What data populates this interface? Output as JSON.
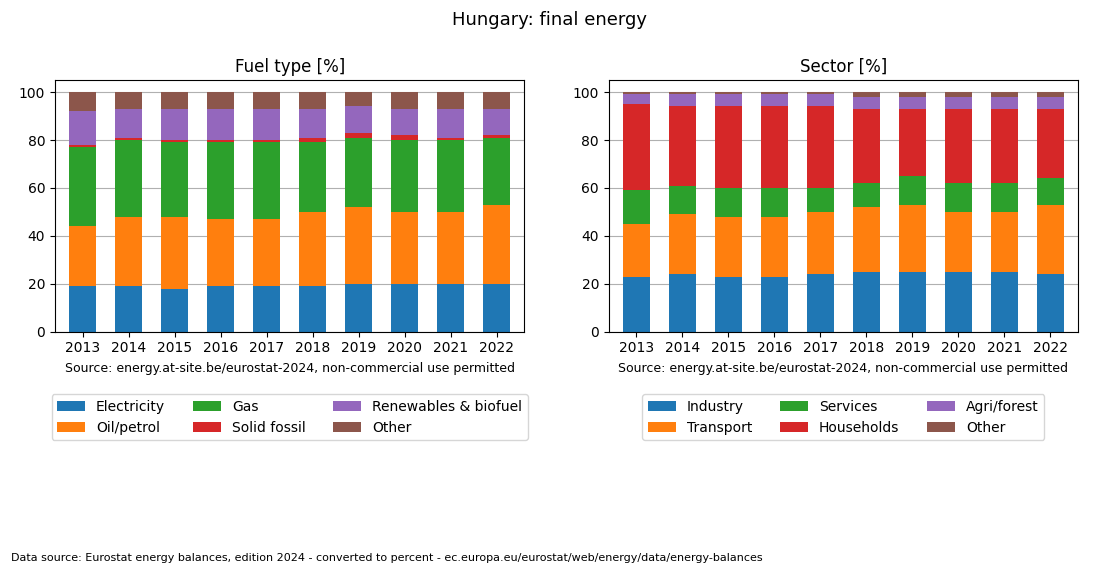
{
  "title": "Hungary: final energy",
  "annotations": [
    "Data source: Eurostat energy balances, edition 2024 - converted to percent - ec.europa.eu/eurostat/web/energy/data/energy-balances"
  ],
  "chart_data": [
    {
      "type": "bar",
      "title": "Fuel type [%]",
      "stacked": true,
      "categories": [
        "2013",
        "2014",
        "2015",
        "2016",
        "2017",
        "2018",
        "2019",
        "2020",
        "2021",
        "2022"
      ],
      "ylim": [
        0,
        105
      ],
      "yticks": [
        0,
        20,
        40,
        60,
        80,
        100
      ],
      "grid": true,
      "legend": "upper center",
      "annotations": [
        "Source: energy.at-site.be/eurostat-2024, non-commercial use permitted"
      ],
      "series": [
        {
          "name": "Electricity",
          "color": "#1f77b4",
          "values": [
            19,
            19,
            18,
            19,
            19,
            19,
            20,
            20,
            20,
            20
          ]
        },
        {
          "name": "Oil/petrol",
          "color": "#ff7f0e",
          "values": [
            25,
            29,
            30,
            28,
            28,
            31,
            32,
            30,
            30,
            33
          ]
        },
        {
          "name": "Gas",
          "color": "#2ca02c",
          "values": [
            33,
            32,
            31,
            32,
            32,
            29,
            29,
            30,
            30,
            28
          ]
        },
        {
          "name": "Solid fossil",
          "color": "#d62728",
          "values": [
            1,
            1,
            1,
            1,
            1,
            2,
            2,
            2,
            1,
            1
          ]
        },
        {
          "name": "Renewables & biofuel",
          "color": "#9467bd",
          "values": [
            14,
            12,
            13,
            13,
            13,
            12,
            11,
            11,
            12,
            11
          ]
        },
        {
          "name": "Other",
          "color": "#8c564b",
          "values": [
            8,
            7,
            7,
            7,
            7,
            7,
            6,
            7,
            7,
            7
          ]
        }
      ]
    },
    {
      "type": "bar",
      "title": "Sector [%]",
      "stacked": true,
      "categories": [
        "2013",
        "2014",
        "2015",
        "2016",
        "2017",
        "2018",
        "2019",
        "2020",
        "2021",
        "2022"
      ],
      "ylim": [
        0,
        105
      ],
      "yticks": [
        0,
        20,
        40,
        60,
        80,
        100
      ],
      "grid": true,
      "legend": "upper center",
      "annotations": [
        "Source: energy.at-site.be/eurostat-2024, non-commercial use permitted"
      ],
      "series": [
        {
          "name": "Industry",
          "color": "#1f77b4",
          "values": [
            23,
            24,
            23,
            23,
            24,
            25,
            25,
            25,
            25,
            24
          ]
        },
        {
          "name": "Transport",
          "color": "#ff7f0e",
          "values": [
            22,
            25,
            25,
            25,
            26,
            27,
            28,
            25,
            25,
            29
          ]
        },
        {
          "name": "Services",
          "color": "#2ca02c",
          "values": [
            14,
            12,
            12,
            12,
            10,
            10,
            12,
            12,
            12,
            11
          ]
        },
        {
          "name": "Households",
          "color": "#d62728",
          "values": [
            36,
            33,
            34,
            34,
            34,
            31,
            28,
            31,
            31,
            29
          ]
        },
        {
          "name": "Agri/forest",
          "color": "#9467bd",
          "values": [
            4,
            5,
            5,
            5,
            5,
            5,
            5,
            5,
            5,
            5
          ]
        },
        {
          "name": "Other",
          "color": "#8c564b",
          "values": [
            1,
            1,
            1,
            1,
            1,
            2,
            2,
            2,
            2,
            2
          ]
        }
      ]
    }
  ]
}
